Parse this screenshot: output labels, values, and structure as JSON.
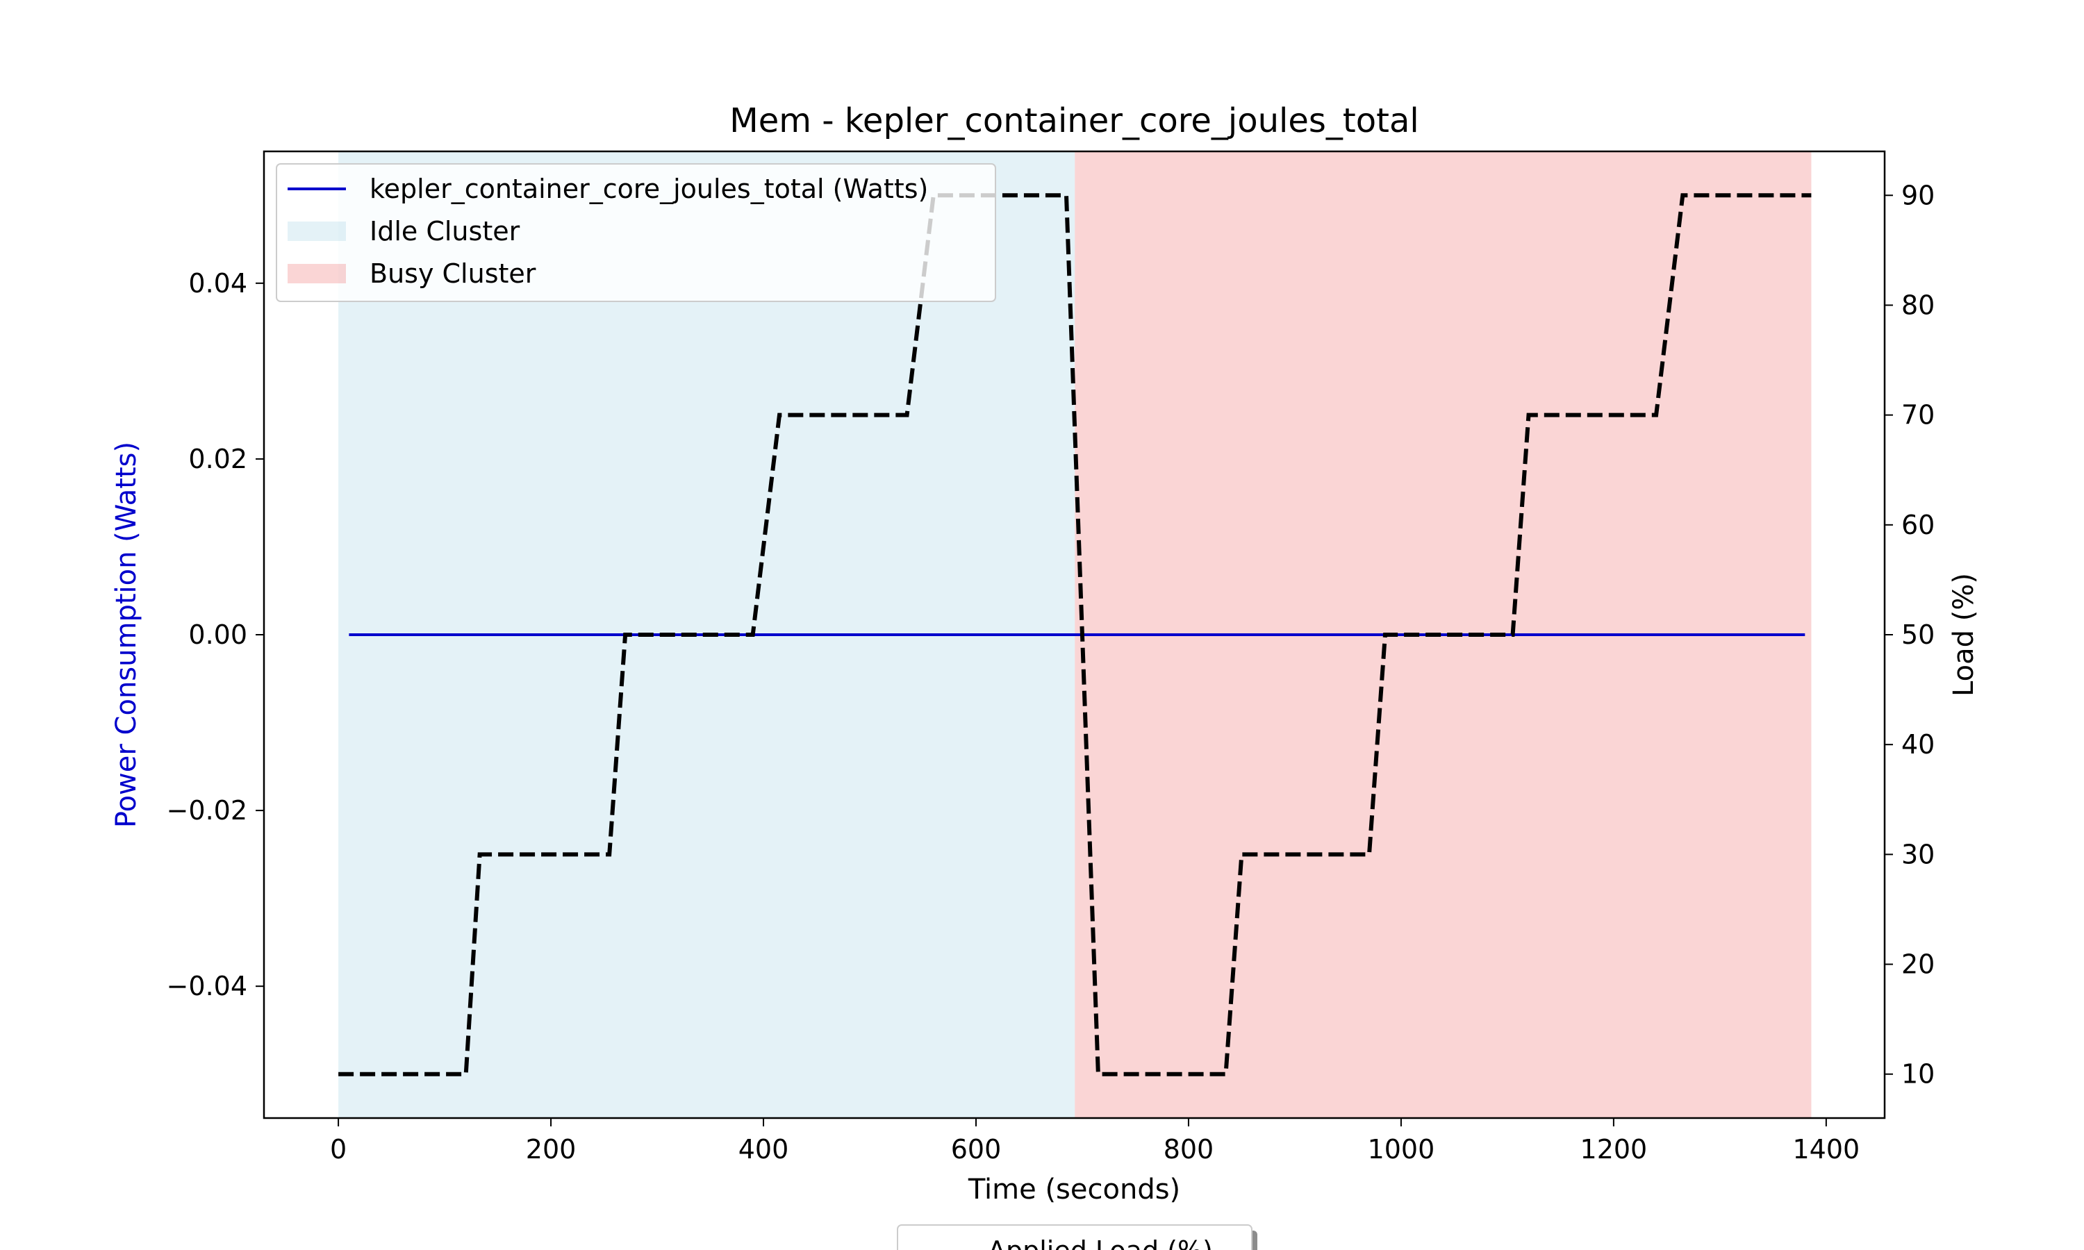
{
  "chart_data": {
    "type": "line",
    "title": "Mem - kepler_container_core_joules_total",
    "xlabel": "Time (seconds)",
    "ylabel_left": "Power Consumption (Watts)",
    "ylabel_right": "Load (%)",
    "xlim": [
      -70,
      1455
    ],
    "ylim_left": [
      -0.055,
      0.055
    ],
    "ylim_right": [
      6,
      94
    ],
    "x_ticks": [
      0,
      200,
      400,
      600,
      800,
      1000,
      1200,
      1400
    ],
    "y_ticks_left": [
      -0.04,
      -0.02,
      0.0,
      0.02,
      0.04
    ],
    "y_tick_labels_left": [
      "−0.04",
      "−0.02",
      "0.00",
      "0.02",
      "0.04"
    ],
    "y_ticks_right": [
      10,
      20,
      30,
      40,
      50,
      60,
      70,
      80,
      90
    ],
    "regions": [
      {
        "name": "Idle Cluster",
        "x_start": 0,
        "x_end": 693,
        "color": "#add8e6",
        "opacity": 0.33
      },
      {
        "name": "Busy Cluster",
        "x_start": 693,
        "x_end": 1386,
        "color": "#f08080",
        "opacity": 0.33
      }
    ],
    "series": [
      {
        "name": "kepler_container_core_joules_total (Watts)",
        "axis": "left",
        "color": "#0000cc",
        "style": "solid",
        "points": [
          [
            10,
            0.0
          ],
          [
            1380,
            0.0
          ]
        ]
      },
      {
        "name": "Applied Load (%)",
        "axis": "right",
        "color": "#000000",
        "style": "dashed",
        "points": [
          [
            0,
            10
          ],
          [
            120,
            10
          ],
          [
            133,
            30
          ],
          [
            255,
            30
          ],
          [
            270,
            50
          ],
          [
            390,
            50
          ],
          [
            415,
            70
          ],
          [
            535,
            70
          ],
          [
            560,
            90
          ],
          [
            685,
            90
          ],
          [
            715,
            10
          ],
          [
            835,
            10
          ],
          [
            850,
            30
          ],
          [
            970,
            30
          ],
          [
            985,
            50
          ],
          [
            1105,
            50
          ],
          [
            1120,
            70
          ],
          [
            1240,
            70
          ],
          [
            1265,
            90
          ],
          [
            1386,
            90
          ]
        ]
      }
    ],
    "legend_main": {
      "placement": "upper-left",
      "entries": [
        "kepler_container_core_joules_total (Watts)",
        "Idle Cluster",
        "Busy Cluster"
      ]
    },
    "legend_secondary": {
      "placement": "bottom-center",
      "entries": [
        "Applied Load (%)"
      ]
    }
  }
}
